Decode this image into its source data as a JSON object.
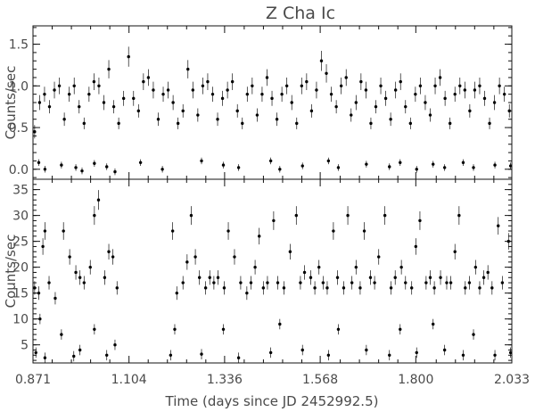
{
  "chart_data": [
    {
      "type": "scatter",
      "title": "Z Cha Ic",
      "xlabel": "",
      "ylabel": "Counts/sec",
      "xlim": [
        0.871,
        2.033
      ],
      "ylim": [
        -0.12,
        1.72
      ],
      "yticks": [
        "0.0",
        "0.5",
        "1.0",
        "1.5"
      ],
      "ytick_values": [
        0.0,
        0.5,
        1.0,
        1.5
      ],
      "grid": false,
      "series": [
        {
          "x": [
            0.875,
            0.887,
            0.899,
            0.911,
            0.923,
            0.935,
            0.947,
            0.959,
            0.971,
            0.983,
            0.995,
            1.007,
            1.019,
            1.031,
            1.043,
            1.055,
            1.067,
            1.079,
            1.091,
            1.103,
            1.115,
            1.127,
            1.139,
            1.151,
            1.163,
            1.175,
            1.187,
            1.199,
            1.211,
            1.223,
            1.235,
            1.247,
            1.259,
            1.271,
            1.283,
            1.295,
            1.307,
            1.319,
            1.331,
            1.343,
            1.355,
            1.367,
            1.379,
            1.391,
            1.403,
            1.415,
            1.427,
            1.439,
            1.451,
            1.463,
            1.475,
            1.487,
            1.499,
            1.511,
            1.523,
            1.535,
            1.547,
            1.559,
            1.571,
            1.583,
            1.595,
            1.607,
            1.619,
            1.631,
            1.643,
            1.655,
            1.667,
            1.679,
            1.691,
            1.703,
            1.715,
            1.727,
            1.739,
            1.751,
            1.763,
            1.775,
            1.787,
            1.799,
            1.811,
            1.823,
            1.835,
            1.847,
            1.859,
            1.871,
            1.883,
            1.895,
            1.907,
            1.919,
            1.931,
            1.943,
            1.955,
            1.967,
            1.979,
            1.991,
            2.003,
            2.015,
            2.027
          ],
          "y": [
            0.45,
            0.8,
            0.9,
            0.75,
            0.95,
            1.0,
            0.6,
            0.9,
            1.0,
            0.75,
            0.55,
            0.9,
            1.05,
            1.0,
            0.8,
            1.2,
            0.75,
            0.55,
            0.85,
            1.35,
            0.85,
            0.7,
            1.05,
            1.1,
            0.95,
            0.6,
            0.9,
            0.95,
            0.8,
            0.55,
            0.7,
            1.2,
            0.95,
            0.65,
            1.0,
            1.05,
            0.9,
            0.6,
            0.85,
            0.95,
            1.05,
            0.7,
            0.55,
            0.9,
            1.0,
            0.65,
            0.9,
            1.1,
            0.85,
            0.6,
            0.9,
            1.0,
            0.8,
            0.55,
            1.0,
            1.05,
            0.7,
            0.95,
            1.3,
            1.15,
            0.9,
            0.75,
            1.0,
            1.1,
            0.65,
            0.8,
            1.05,
            0.95,
            0.55,
            0.75,
            1.0,
            0.85,
            0.6,
            0.95,
            1.05,
            0.75,
            0.55,
            0.9,
            1.0,
            0.8,
            0.65,
            1.0,
            1.1,
            0.85,
            0.55,
            0.9,
            1.0,
            0.95,
            0.7,
            0.95,
            1.0,
            0.85,
            0.55,
            0.8,
            1.0,
            0.9,
            0.7
          ],
          "yerr": [
            0.08,
            0.09,
            0.09,
            0.08,
            0.1,
            0.1,
            0.08,
            0.09,
            0.1,
            0.08,
            0.07,
            0.09,
            0.1,
            0.1,
            0.09,
            0.11,
            0.08,
            0.07,
            0.09,
            0.12,
            0.09,
            0.08,
            0.1,
            0.1,
            0.1,
            0.08,
            0.09,
            0.1,
            0.09,
            0.07,
            0.08,
            0.11,
            0.1,
            0.08,
            0.1,
            0.1,
            0.09,
            0.08,
            0.09,
            0.1,
            0.1,
            0.08,
            0.07,
            0.09,
            0.1,
            0.08,
            0.09,
            0.1,
            0.09,
            0.08,
            0.09,
            0.1,
            0.09,
            0.07,
            0.1,
            0.1,
            0.08,
            0.1,
            0.12,
            0.11,
            0.09,
            0.08,
            0.1,
            0.1,
            0.08,
            0.09,
            0.1,
            0.1,
            0.07,
            0.08,
            0.1,
            0.09,
            0.08,
            0.1,
            0.1,
            0.08,
            0.07,
            0.09,
            0.1,
            0.09,
            0.08,
            0.1,
            0.1,
            0.09,
            0.07,
            0.09,
            0.1,
            0.1,
            0.08,
            0.1,
            0.1,
            0.09,
            0.07,
            0.09,
            0.1,
            0.09,
            0.08
          ]
        },
        {
          "x": [
            0.885,
            0.9,
            0.94,
            0.975,
            0.99,
            1.02,
            1.05,
            1.07,
            1.132,
            1.185,
            1.28,
            1.333,
            1.37,
            1.448,
            1.47,
            1.525,
            1.588,
            1.612,
            1.68,
            1.736,
            1.762,
            1.802,
            1.842,
            1.87,
            1.915,
            1.94,
            1.992,
            2.03
          ],
          "y": [
            0.08,
            0.0,
            0.05,
            0.02,
            -0.02,
            0.07,
            0.03,
            -0.03,
            0.08,
            0.0,
            0.1,
            0.05,
            0.02,
            0.1,
            0.0,
            0.04,
            0.1,
            0.02,
            0.06,
            0.03,
            0.08,
            0.0,
            0.06,
            0.02,
            0.08,
            0.02,
            0.05,
            0.04
          ],
          "yerr": [
            0.04,
            0.04,
            0.04,
            0.04,
            0.04,
            0.04,
            0.04,
            0.04,
            0.04,
            0.04,
            0.04,
            0.04,
            0.04,
            0.04,
            0.04,
            0.04,
            0.04,
            0.04,
            0.04,
            0.04,
            0.04,
            0.04,
            0.04,
            0.04,
            0.04,
            0.04,
            0.04,
            0.04
          ]
        }
      ]
    },
    {
      "type": "scatter",
      "title": "",
      "xlabel": "Time (days since JD 2452992.5)",
      "ylabel": "Counts/sec",
      "xlim": [
        0.871,
        2.033
      ],
      "ylim": [
        1.5,
        37.0
      ],
      "xticks": [
        "0.871",
        "1.104",
        "1.336",
        "1.568",
        "1.800",
        "2.033"
      ],
      "xtick_values": [
        0.871,
        1.104,
        1.336,
        1.568,
        1.8,
        2.033
      ],
      "yticks": [
        "5",
        "10",
        "15",
        "20",
        "25",
        "30",
        "35"
      ],
      "ytick_values": [
        5,
        10,
        15,
        20,
        25,
        30,
        35
      ],
      "grid": false,
      "series": [
        {
          "x": [
            0.875,
            0.885,
            0.895,
            0.9,
            0.91,
            0.925,
            0.945,
            0.96,
            0.975,
            0.985,
            0.995,
            1.01,
            1.02,
            1.03,
            1.045,
            1.055,
            1.065,
            1.075,
            1.21,
            1.22,
            1.235,
            1.245,
            1.255,
            1.265,
            1.275,
            1.29,
            1.3,
            1.31,
            1.32,
            1.335,
            1.345,
            1.36,
            1.375,
            1.39,
            1.4,
            1.41,
            1.42,
            1.43,
            1.44,
            1.455,
            1.465,
            1.48,
            1.495,
            1.51,
            1.52,
            1.53,
            1.545,
            1.555,
            1.565,
            1.575,
            1.585,
            1.6,
            1.61,
            1.625,
            1.635,
            1.645,
            1.655,
            1.665,
            1.675,
            1.69,
            1.7,
            1.71,
            1.725,
            1.74,
            1.75,
            1.765,
            1.775,
            1.79,
            1.8,
            1.81,
            1.825,
            1.835,
            1.845,
            1.86,
            1.875,
            1.885,
            1.895,
            1.905,
            1.92,
            1.93,
            1.945,
            1.955,
            1.965,
            1.975,
            1.985,
            2.0,
            2.01,
            2.025
          ],
          "y": [
            16,
            15,
            24,
            27,
            17,
            14,
            27,
            22,
            19,
            18,
            17,
            20,
            30,
            33,
            18,
            23,
            22,
            16,
            27,
            15,
            17,
            21,
            30,
            22,
            18,
            16,
            18,
            17,
            18,
            16,
            27,
            22,
            17,
            15,
            17,
            20,
            26,
            16,
            17,
            29,
            17,
            16,
            23,
            30,
            17,
            19,
            18,
            16,
            20,
            17,
            16,
            27,
            18,
            16,
            30,
            17,
            20,
            16,
            27,
            18,
            17,
            22,
            30,
            16,
            18,
            20,
            17,
            16,
            24,
            29,
            17,
            18,
            16,
            18,
            17,
            17,
            23,
            30,
            16,
            17,
            20,
            16,
            18,
            19,
            16,
            28,
            17,
            25
          ],
          "yerr": [
            1.3,
            1.3,
            1.6,
            1.7,
            1.3,
            1.2,
            1.7,
            1.5,
            1.4,
            1.4,
            1.3,
            1.4,
            1.8,
            1.9,
            1.4,
            1.5,
            1.5,
            1.3,
            1.7,
            1.3,
            1.3,
            1.5,
            1.8,
            1.5,
            1.4,
            1.3,
            1.4,
            1.3,
            1.4,
            1.3,
            1.7,
            1.5,
            1.3,
            1.3,
            1.3,
            1.4,
            1.6,
            1.3,
            1.3,
            1.8,
            1.3,
            1.3,
            1.5,
            1.8,
            1.3,
            1.4,
            1.4,
            1.3,
            1.4,
            1.3,
            1.3,
            1.7,
            1.4,
            1.3,
            1.8,
            1.3,
            1.4,
            1.3,
            1.7,
            1.4,
            1.3,
            1.5,
            1.8,
            1.3,
            1.4,
            1.4,
            1.3,
            1.3,
            1.6,
            1.8,
            1.3,
            1.4,
            1.3,
            1.4,
            1.3,
            1.3,
            1.5,
            1.8,
            1.3,
            1.3,
            1.4,
            1.3,
            1.4,
            1.4,
            1.3,
            1.7,
            1.3,
            1.6
          ]
        },
        {
          "x": [
            0.878,
            0.888,
            0.9,
            0.94,
            0.97,
            0.985,
            1.02,
            1.05,
            1.07,
            1.205,
            1.215,
            1.28,
            1.333,
            1.37,
            1.448,
            1.47,
            1.525,
            1.588,
            1.612,
            1.68,
            1.736,
            1.762,
            1.802,
            1.842,
            1.87,
            1.915,
            1.94,
            1.992,
            2.03
          ],
          "y": [
            3.5,
            10,
            2.5,
            7,
            2.8,
            4,
            8,
            3,
            5,
            3,
            8,
            3.2,
            8,
            2.5,
            3.5,
            9,
            4,
            3,
            8,
            4,
            3,
            8,
            3.5,
            9,
            4,
            3,
            7,
            3,
            3.5
          ],
          "yerr": [
            1.0,
            1.0,
            1.0,
            1.0,
            1.0,
            1.0,
            1.0,
            1.0,
            1.0,
            1.0,
            1.0,
            1.0,
            1.0,
            1.0,
            1.0,
            1.0,
            1.0,
            1.0,
            1.0,
            1.0,
            1.0,
            1.0,
            1.0,
            1.0,
            1.0,
            1.0,
            1.0,
            1.0,
            1.0
          ]
        }
      ]
    }
  ]
}
